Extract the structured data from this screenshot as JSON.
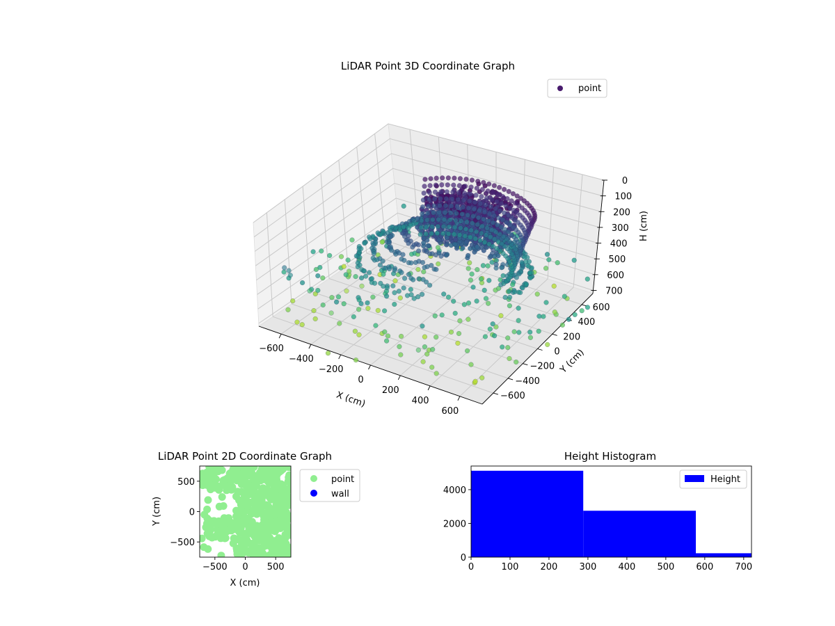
{
  "chart_data": [
    {
      "type": "scatter",
      "title": "LiDAR Point 3D Coordinate Graph",
      "xlabel": "X (cm)",
      "ylabel": "Y (cm)",
      "zlabel": "H (cm)",
      "xlim": [
        -750,
        750
      ],
      "ylim": [
        -750,
        750
      ],
      "zlim": [
        0,
        720
      ],
      "xticks": [
        -600,
        -400,
        -200,
        0,
        200,
        400,
        600
      ],
      "yticks": [
        -600,
        -400,
        -200,
        0,
        200,
        400,
        600
      ],
      "zticks": [
        0,
        100,
        200,
        300,
        400,
        500,
        600,
        700
      ],
      "z_axis_inverted": true,
      "colormap": "viridis",
      "grid": true,
      "legend": {
        "position": "top-right",
        "entries": [
          {
            "label": "point",
            "color": "#481b6d"
          }
        ]
      },
      "series": [
        {
          "name": "point",
          "points_sample": [
            {
              "x": 0,
              "y": 0,
              "h": 150
            },
            {
              "x": -100,
              "y": 150,
              "h": 100
            },
            {
              "x": 100,
              "y": -100,
              "h": 100
            },
            {
              "x": 300,
              "y": 0,
              "h": 200
            },
            {
              "x": 250,
              "y": 200,
              "h": 250
            },
            {
              "x": -200,
              "y": -200,
              "h": 300
            },
            {
              "x": 400,
              "y": 300,
              "h": 350
            },
            {
              "x": 0,
              "y": -400,
              "h": 600
            },
            {
              "x": -350,
              "y": 0,
              "h": 400
            },
            {
              "x": 450,
              "y": -200,
              "h": 500
            },
            {
              "x": -500,
              "y": -300,
              "h": 700
            },
            {
              "x": 600,
              "y": 500,
              "h": 650
            }
          ]
        }
      ]
    },
    {
      "type": "scatter",
      "title": "LiDAR Point 2D Coordinate Graph",
      "xlabel": "X (cm)",
      "ylabel": "Y (cm)",
      "xlim": [
        -750,
        750
      ],
      "ylim": [
        -750,
        750
      ],
      "xticks": [
        -500,
        0,
        500
      ],
      "yticks": [
        -500,
        0,
        500
      ],
      "legend": {
        "position": "outside-right",
        "entries": [
          {
            "label": "point",
            "color": "#90ee90"
          },
          {
            "label": "wall",
            "color": "#0000ff"
          }
        ]
      },
      "series": [
        {
          "name": "point",
          "color": "#90ee90",
          "coverage": "dense cloud over most of the area"
        },
        {
          "name": "wall",
          "color": "#0000ff",
          "points": []
        }
      ]
    },
    {
      "type": "bar",
      "title": "Height Histogram",
      "xlim": [
        0,
        720
      ],
      "ylim": [
        0,
        5400
      ],
      "xticks": [
        0,
        100,
        200,
        300,
        400,
        500,
        600,
        700
      ],
      "yticks": [
        0,
        2000,
        4000
      ],
      "legend": {
        "position": "top-right",
        "entries": [
          {
            "label": "Height",
            "color": "#0000ff"
          }
        ]
      },
      "bins": [
        {
          "start": 0,
          "end": 288,
          "count": 5120
        },
        {
          "start": 288,
          "end": 577,
          "count": 2750
        },
        {
          "start": 577,
          "end": 720,
          "count": 230
        }
      ],
      "color": "#0000ff"
    }
  ]
}
